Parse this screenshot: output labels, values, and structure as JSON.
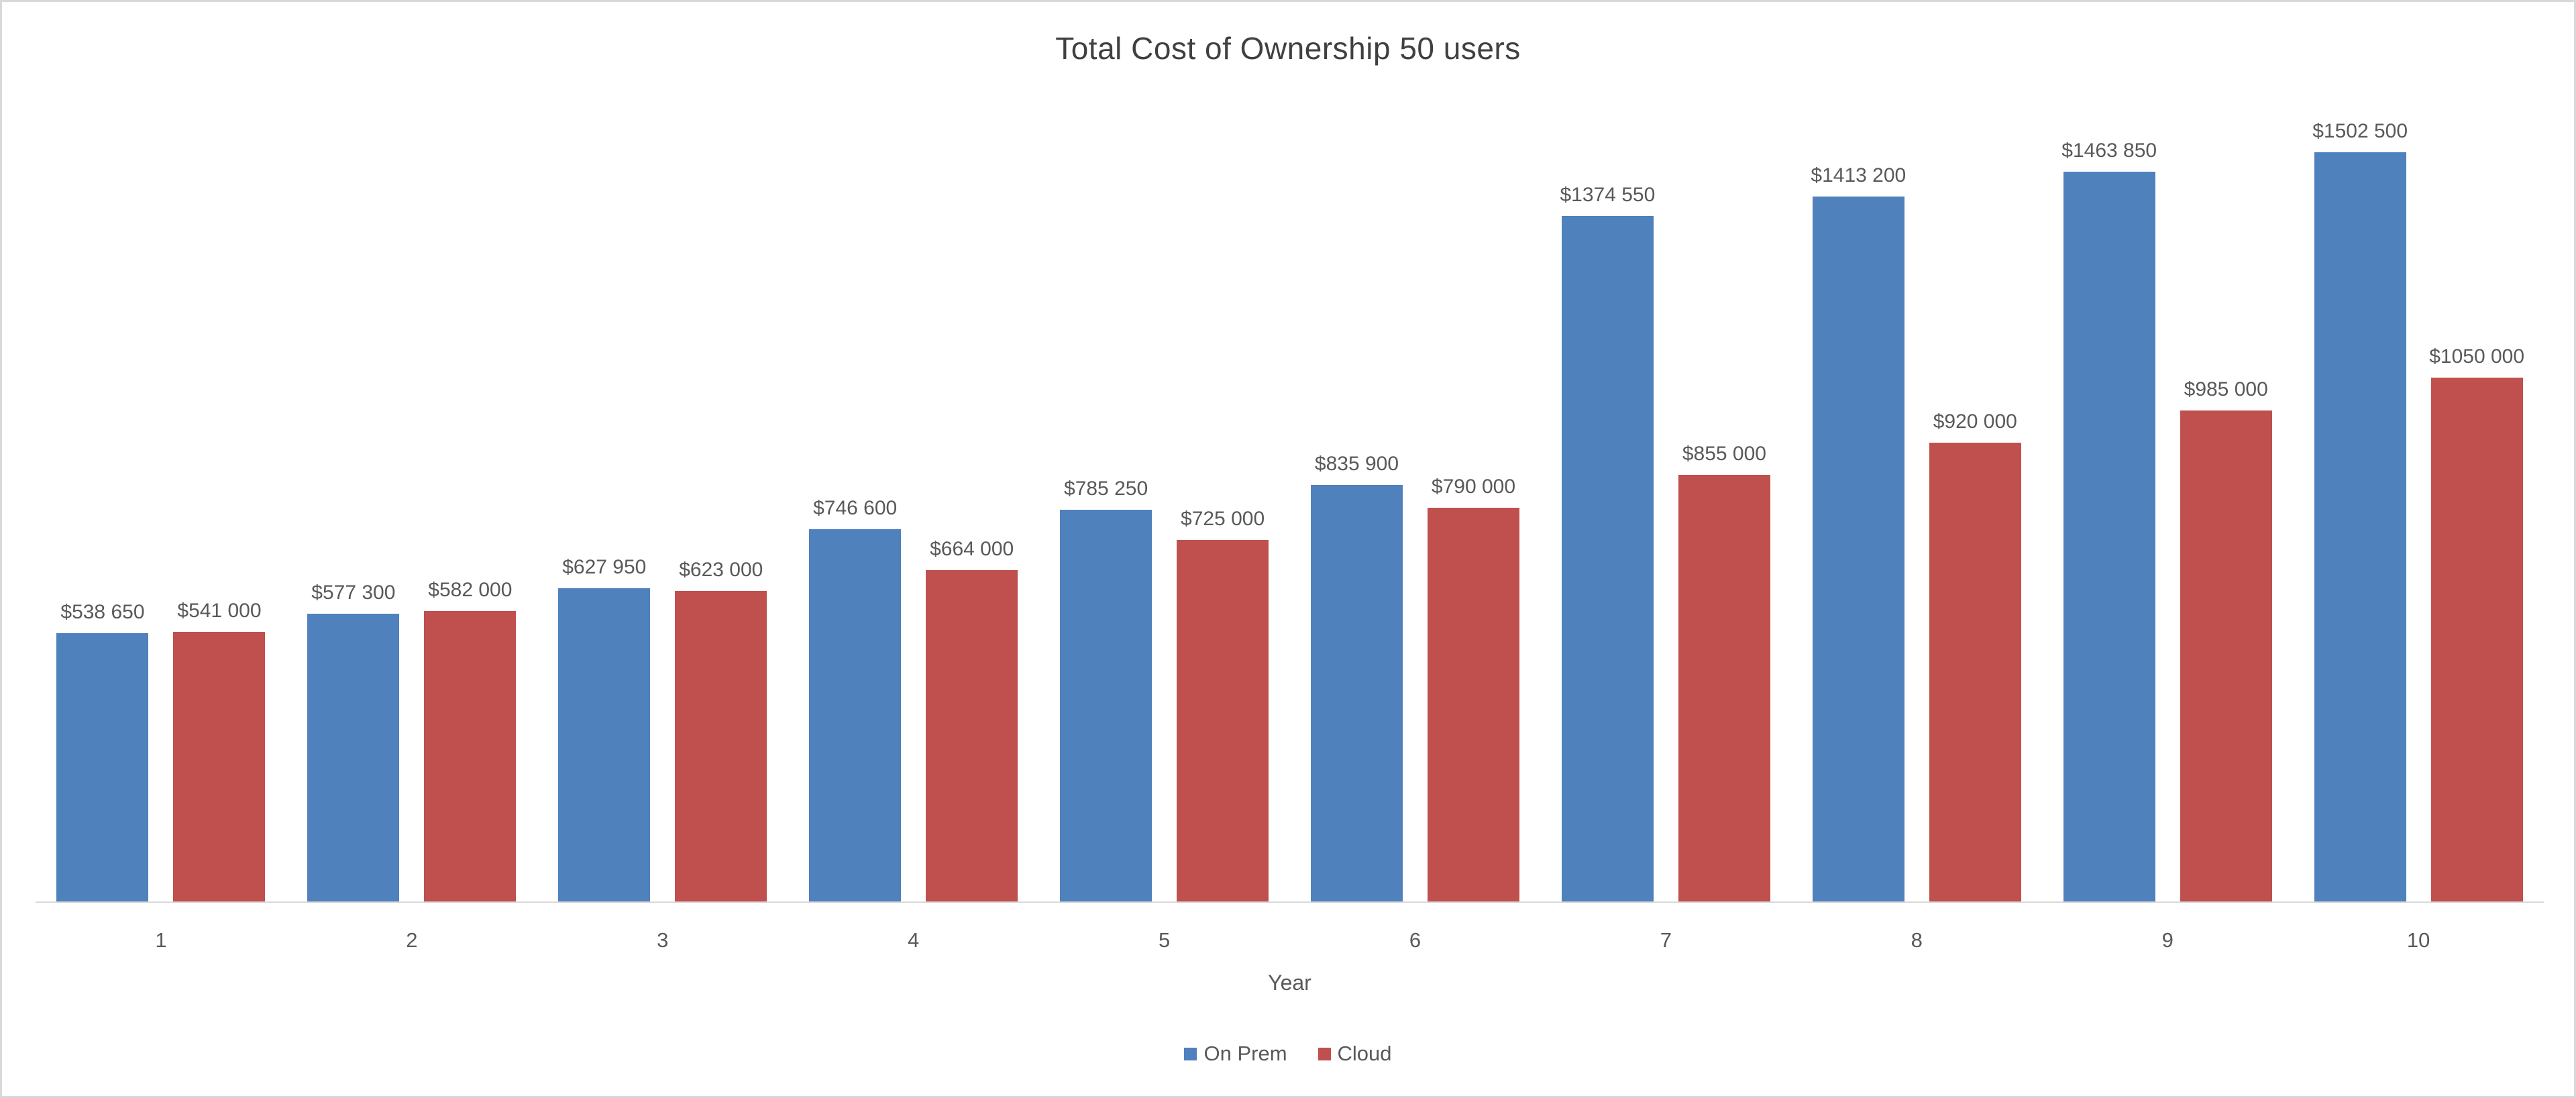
{
  "title": "Total Cost of Ownership 50 users",
  "colors": {
    "on_prem": "#4F81BD",
    "cloud": "#C0504D",
    "axis_line": "#D9D9D9",
    "chart_border": "#D9D9D9",
    "title_text": "#404040",
    "label_text": "#595959"
  },
  "chart_data": {
    "type": "bar",
    "title": "Total Cost of Ownership 50 users",
    "xlabel": "Year",
    "ylabel": "",
    "categories": [
      "1",
      "2",
      "3",
      "4",
      "5",
      "6",
      "7",
      "8",
      "9",
      "10"
    ],
    "series": [
      {
        "name": "On Prem",
        "color": "#4F81BD",
        "values": [
          538650,
          577300,
          627950,
          746600,
          785250,
          835900,
          1374550,
          1413200,
          1463850,
          1502500
        ],
        "labels": [
          "$538 650",
          "$577 300",
          "$627 950",
          "$746 600",
          "$785 250",
          "$835 900",
          "$1374 550",
          "$1413 200",
          "$1463 850",
          "$1502 500"
        ]
      },
      {
        "name": "Cloud",
        "color": "#C0504D",
        "values": [
          541000,
          582000,
          623000,
          664000,
          725000,
          790000,
          855000,
          920000,
          985000,
          1050000
        ],
        "labels": [
          "$541 000",
          "$582 000",
          "$623 000",
          "$664 000",
          "$725 000",
          "$790 000",
          "$855 000",
          "$920 000",
          "$985 000",
          "$1050 000"
        ]
      }
    ],
    "data_labels": true,
    "grid": false,
    "legend_position": "bottom",
    "ylim": [
      0,
      1600000
    ]
  },
  "legend": {
    "items": [
      {
        "label": "On Prem",
        "color": "#4F81BD"
      },
      {
        "label": "Cloud",
        "color": "#C0504D"
      }
    ]
  }
}
